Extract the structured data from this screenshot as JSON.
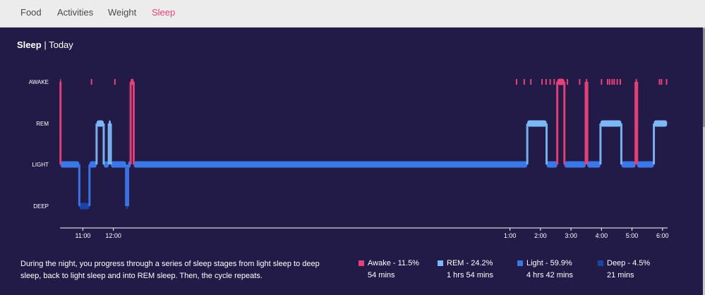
{
  "nav": {
    "tabs": [
      {
        "label": "Food",
        "active": false
      },
      {
        "label": "Activities",
        "active": false
      },
      {
        "label": "Weight",
        "active": false
      },
      {
        "label": "Sleep",
        "active": true
      }
    ],
    "active_color": "#e8417a"
  },
  "panel": {
    "title": "Sleep",
    "separator": "|",
    "subtitle": "Today",
    "background": "#231b47"
  },
  "chart_data": {
    "type": "line",
    "stages": [
      "AWAKE",
      "REM",
      "LIGHT",
      "DEEP"
    ],
    "x_range": [
      "10:15",
      "6:10"
    ],
    "xticks": [
      "11:00",
      "12:00",
      "1:00",
      "2:00",
      "3:00",
      "4:00",
      "5:00",
      "6:00"
    ],
    "stage_colors": {
      "AWAKE": "#e8417a",
      "REM": "#7cb8f5",
      "LIGHT": "#3a78e8",
      "DEEP": "#1b43a8"
    },
    "segments": [
      {
        "stage": "AWAKE",
        "start": "10:15",
        "end": "10:16"
      },
      {
        "stage": "LIGHT",
        "start": "10:16",
        "end": "10:53"
      },
      {
        "stage": "DEEP",
        "start": "10:53",
        "end": "11:13"
      },
      {
        "stage": "LIGHT",
        "start": "11:13",
        "end": "11:27"
      },
      {
        "stage": "REM",
        "start": "11:27",
        "end": "11:41"
      },
      {
        "stage": "LIGHT",
        "start": "11:41",
        "end": "11:51"
      },
      {
        "stage": "REM",
        "start": "11:51",
        "end": "11:55"
      },
      {
        "stage": "LIGHT",
        "start": "11:55",
        "end": "12:25"
      },
      {
        "stage": "DEEP",
        "start": "12:25",
        "end": "12:29"
      },
      {
        "stage": "LIGHT",
        "start": "12:29",
        "end": "12:34"
      },
      {
        "stage": "AWAKE",
        "start": "12:34",
        "end": "12:40"
      },
      {
        "stage": "LIGHT",
        "start": "12:40",
        "end": "1:34"
      },
      {
        "stage": "REM",
        "start": "1:34",
        "end": "2:12"
      },
      {
        "stage": "LIGHT",
        "start": "2:12",
        "end": "2:33"
      },
      {
        "stage": "AWAKE",
        "start": "2:33",
        "end": "2:47"
      },
      {
        "stage": "LIGHT",
        "start": "2:47",
        "end": "3:29"
      },
      {
        "stage": "AWAKE",
        "start": "3:29",
        "end": "3:32"
      },
      {
        "stage": "LIGHT",
        "start": "3:32",
        "end": "3:58"
      },
      {
        "stage": "REM",
        "start": "3:58",
        "end": "4:39"
      },
      {
        "stage": "LIGHT",
        "start": "4:39",
        "end": "5:07"
      },
      {
        "stage": "AWAKE",
        "start": "5:07",
        "end": "5:10"
      },
      {
        "stage": "LIGHT",
        "start": "5:10",
        "end": "5:43"
      },
      {
        "stage": "REM",
        "start": "5:43",
        "end": "6:09"
      }
    ],
    "awake_marks": [
      "11:17",
      "12:03",
      "1:13",
      "1:28",
      "1:41",
      "2:03",
      "2:11",
      "2:19",
      "2:27",
      "2:53",
      "3:17",
      "4:00",
      "4:12",
      "4:16",
      "4:21",
      "4:25",
      "4:31",
      "4:37",
      "5:54",
      "5:58",
      "6:08"
    ]
  },
  "description": "During the night, you progress through a series of sleep stages from light sleep to deep sleep, back to light sleep and into REM sleep. Then, the cycle repeats.",
  "legend": [
    {
      "label": "Awake - 11.5%",
      "duration": "54 mins",
      "color": "#e8417a"
    },
    {
      "label": "REM - 24.2%",
      "duration": "1 hrs 54 mins",
      "color": "#7cb8f5"
    },
    {
      "label": "Light - 59.9%",
      "duration": "4 hrs 42 mins",
      "color": "#3a78e8"
    },
    {
      "label": "Deep - 4.5%",
      "duration": "21 mins",
      "color": "#1b43a8"
    }
  ]
}
